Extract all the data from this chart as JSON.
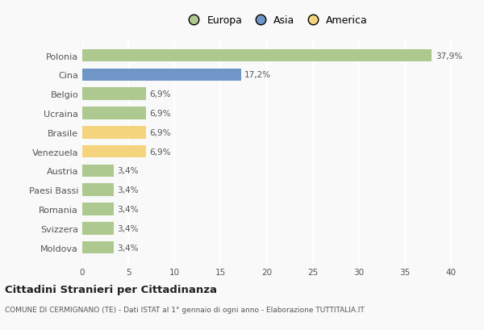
{
  "categories": [
    "Polonia",
    "Cina",
    "Belgio",
    "Ucraina",
    "Brasile",
    "Venezuela",
    "Austria",
    "Paesi Bassi",
    "Romania",
    "Svizzera",
    "Moldova"
  ],
  "values": [
    37.9,
    17.2,
    6.9,
    6.9,
    6.9,
    6.9,
    3.4,
    3.4,
    3.4,
    3.4,
    3.4
  ],
  "labels": [
    "37,9%",
    "17,2%",
    "6,9%",
    "6,9%",
    "6,9%",
    "6,9%",
    "3,4%",
    "3,4%",
    "3,4%",
    "3,4%",
    "3,4%"
  ],
  "colors": [
    "#aec98f",
    "#7096c8",
    "#aec98f",
    "#aec98f",
    "#f5d47e",
    "#f5d47e",
    "#aec98f",
    "#aec98f",
    "#aec98f",
    "#aec98f",
    "#aec98f"
  ],
  "legend": [
    {
      "label": "Europa",
      "color": "#aec98f"
    },
    {
      "label": "Asia",
      "color": "#7096c8"
    },
    {
      "label": "America",
      "color": "#f5d47e"
    }
  ],
  "xlim": [
    0,
    42
  ],
  "xticks": [
    0,
    5,
    10,
    15,
    20,
    25,
    30,
    35,
    40
  ],
  "title": "Cittadini Stranieri per Cittadinanza",
  "subtitle": "COMUNE DI CERMIGNANO (TE) - Dati ISTAT al 1° gennaio di ogni anno - Elaborazione TUTTITALIA.IT",
  "background_color": "#f9f9f9",
  "grid_color": "#ffffff",
  "bar_height": 0.65
}
